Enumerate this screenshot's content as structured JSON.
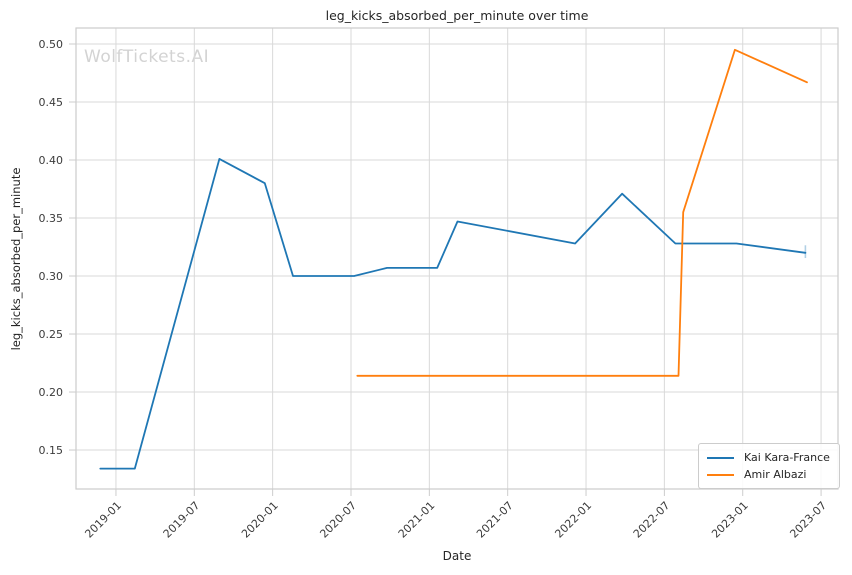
{
  "figure": {
    "watermark": "WolfTickets.AI"
  },
  "colors": {
    "background": "#ffffff",
    "grid": "#d9d9d9",
    "spine": "#cccccc",
    "title_text": "#262626",
    "tick_text": "#3b3b3b",
    "watermark": "#d3d3d3",
    "series_blue": "#1f77b4",
    "series_orange": "#ff7f0e"
  },
  "chart_data": {
    "type": "line",
    "title": "leg_kicks_absorbed_per_minute over time",
    "xlabel": "Date",
    "ylabel": "leg_kicks_absorbed_per_minute",
    "grid": true,
    "legend_position": "lower right",
    "x_tick_labels": [
      "2019-01",
      "2019-07",
      "2020-01",
      "2020-07",
      "2021-01",
      "2021-07",
      "2022-01",
      "2022-07",
      "2023-01",
      "2023-07"
    ],
    "x_tick_values": [
      2019.0,
      2019.5,
      2020.0,
      2020.5,
      2021.0,
      2021.5,
      2022.0,
      2022.5,
      2023.0,
      2023.5
    ],
    "y_ticks": [
      0.15,
      0.2,
      0.25,
      0.3,
      0.35,
      0.4,
      0.45,
      0.5
    ],
    "xlim": [
      2018.745,
      2023.608
    ],
    "ylim": [
      0.1164,
      0.5138
    ],
    "series": [
      {
        "name": "Kai Kara-France",
        "color": "#1f77b4",
        "x": [
          2018.9,
          2019.12,
          2019.66,
          2019.95,
          2020.13,
          2020.52,
          2020.73,
          2021.05,
          2021.18,
          2021.93,
          2022.23,
          2022.57,
          2022.96,
          2023.4
        ],
        "y": [
          0.134,
          0.134,
          0.401,
          0.38,
          0.3,
          0.3,
          0.307,
          0.307,
          0.347,
          0.328,
          0.371,
          0.328,
          0.328,
          0.32
        ]
      },
      {
        "name": "Amir Albazi",
        "color": "#ff7f0e",
        "x": [
          2020.54,
          2022.59,
          2022.62,
          2022.95,
          2023.41
        ],
        "y": [
          0.214,
          0.214,
          0.355,
          0.495,
          0.467
        ]
      }
    ],
    "error_cap": {
      "series": "Kai Kara-France",
      "x": 2023.4,
      "y_low": 0.3155,
      "y_high": 0.3265
    }
  }
}
